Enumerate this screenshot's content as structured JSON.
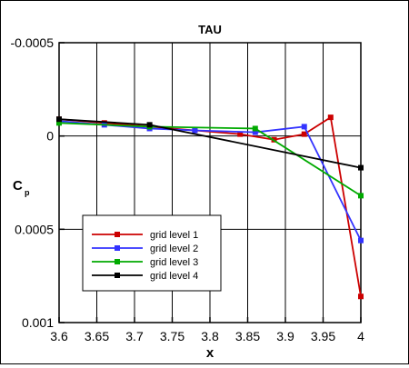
{
  "chart_data": {
    "type": "line",
    "title": "TAU",
    "xlabel": "x",
    "ylabel": "C",
    "ylabel_subscript": "p",
    "xlim": [
      3.6,
      4.0
    ],
    "ylim": [
      0.001,
      -0.0005
    ],
    "y_inverted": true,
    "grid": true,
    "legend_position": "lower-left",
    "xticks": [
      3.6,
      3.65,
      3.7,
      3.75,
      3.8,
      3.85,
      3.9,
      3.95,
      4.0
    ],
    "xtick_labels": [
      "3.6",
      "3.65",
      "3.7",
      "3.75",
      "3.8",
      "3.85",
      "3.9",
      "3.95",
      "4"
    ],
    "yticks": [
      -0.0005,
      0,
      0.0005,
      0.001
    ],
    "ytick_labels": [
      "-0.0005",
      "0",
      "0.0005",
      "0.001"
    ],
    "series": [
      {
        "name": "grid level 1",
        "color": "#cc0000",
        "marker": "square",
        "x": [
          3.6,
          3.66,
          3.72,
          3.78,
          3.84,
          3.885,
          3.925,
          3.96,
          4.0
        ],
        "y": [
          -9e-05,
          -7e-05,
          -5e-05,
          -3e-05,
          -1e-05,
          2e-05,
          -1e-05,
          -0.0001,
          0.00086
        ]
      },
      {
        "name": "grid level 2",
        "color": "#3333ff",
        "marker": "square",
        "x": [
          3.6,
          3.66,
          3.72,
          3.78,
          3.86,
          3.925,
          4.0
        ],
        "y": [
          -8e-05,
          -6e-05,
          -4e-05,
          -3e-05,
          -2e-05,
          -5e-05,
          0.00056
        ]
      },
      {
        "name": "grid level 3",
        "color": "#00aa00",
        "marker": "square",
        "x": [
          3.6,
          3.72,
          3.86,
          4.0
        ],
        "y": [
          -7e-05,
          -5e-05,
          -4e-05,
          0.00032
        ]
      },
      {
        "name": "grid level 4",
        "color": "#000000",
        "marker": "square",
        "x": [
          3.6,
          3.72,
          4.0
        ],
        "y": [
          -9e-05,
          -6e-05,
          0.00017
        ]
      }
    ]
  }
}
